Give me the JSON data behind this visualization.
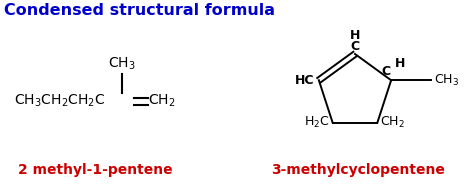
{
  "title": "Condensed structural formula",
  "title_color": "#0000CC",
  "title_fontsize": 11.5,
  "label1": "2 methyl-1-pentene",
  "label2": "3-methylcyclopentene",
  "label_color": "#CC0000",
  "label_fontsize": 10,
  "background_color": "#FFFFFF",
  "text_color": "#000000",
  "bond_color": "#000000",
  "fig_width": 4.74,
  "fig_height": 1.89,
  "dpi": 100
}
